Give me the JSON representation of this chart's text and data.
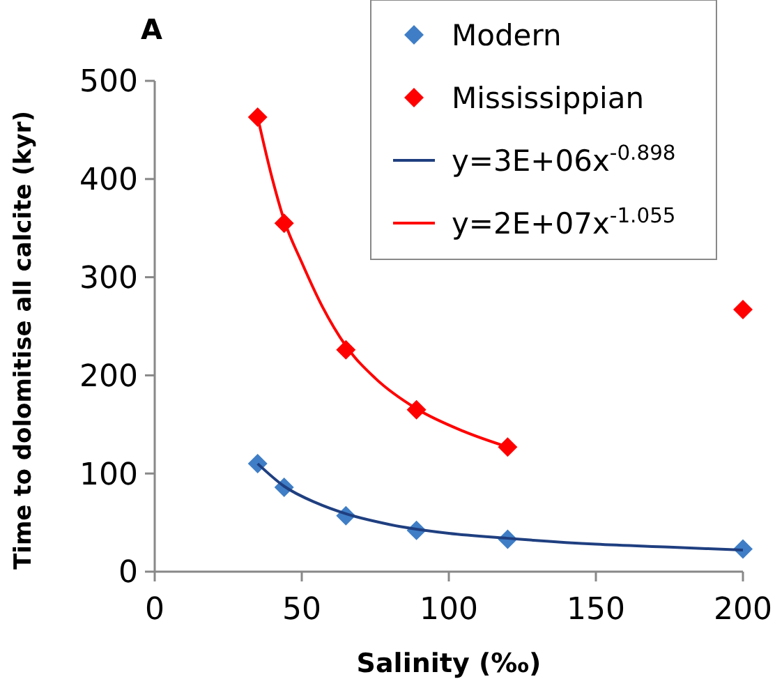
{
  "chart_data": {
    "type": "scatter",
    "title": "A",
    "xlabel": "Salinity (‰)",
    "ylabel": "Time to dolomitise all calcite (kyr)",
    "xlim": [
      0,
      200
    ],
    "xticks": [
      0,
      50,
      100,
      150,
      200
    ],
    "ylim": [
      0,
      500
    ],
    "yticks": [
      0,
      100,
      200,
      300,
      400,
      500
    ],
    "marker": "diamond",
    "legend": "top right",
    "grid": false,
    "series": [
      {
        "name": "Modern",
        "color": "#3f7ec6",
        "x": [
          35,
          44,
          65,
          89,
          120,
          200
        ],
        "values": [
          110,
          86,
          57,
          42,
          33,
          23
        ]
      },
      {
        "name": "Mississippian",
        "color": "#ff0000",
        "x": [
          35,
          44,
          65,
          89,
          120,
          200
        ],
        "values": [
          463,
          355,
          226,
          165,
          127,
          267
        ]
      },
      {
        "name": "y=3E+06x$^{-0.898}$",
        "type": "line",
        "color": "#1f3f80",
        "marker": "none",
        "x": [
          35,
          44,
          55,
          65,
          80,
          100,
          120,
          150,
          175,
          200
        ],
        "values": [
          110,
          87,
          70,
          59,
          48,
          39,
          34,
          28,
          25,
          22
        ]
      },
      {
        "name": "y=2E+07x$^{-1.055}$",
        "type": "line",
        "color": "#ff0000",
        "marker": "none",
        "x": [
          35,
          40,
          44,
          50,
          57,
          65,
          75,
          89,
          105,
          120
        ],
        "values": [
          463,
          400,
          358,
          315,
          270,
          230,
          197,
          166,
          143,
          127
        ]
      }
    ]
  }
}
